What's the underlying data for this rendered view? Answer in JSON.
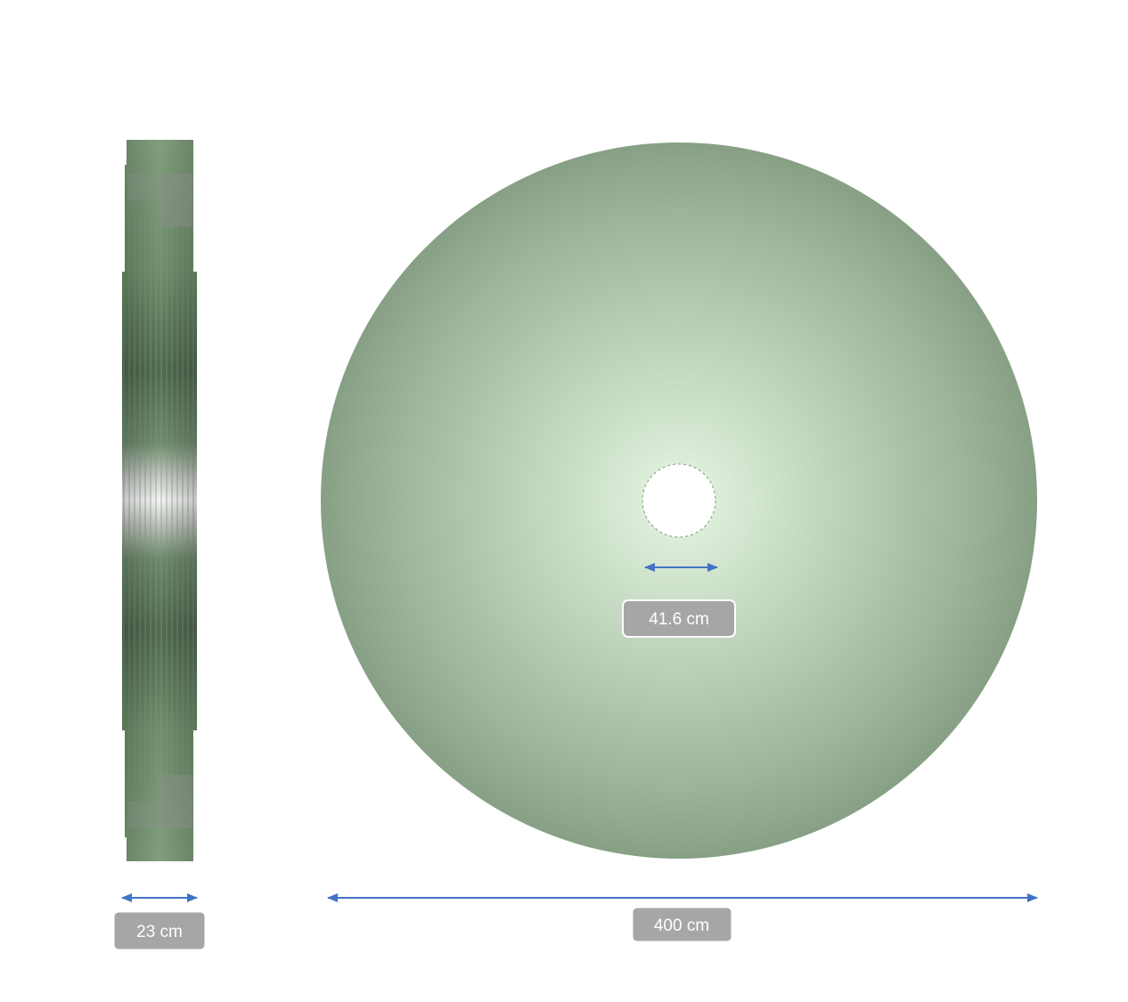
{
  "dimensions": {
    "thickness": {
      "label": "23 cm"
    },
    "outer_diameter": {
      "label": "400 cm"
    },
    "inner_diameter": {
      "label": "41.6 cm"
    }
  },
  "colors": {
    "disc_edge": "#88a085",
    "disc_mid": "#b3c9b0",
    "disc_center": "#e6f6e3",
    "side_green": "#7e9c7a",
    "side_dark": "#4f6a4e",
    "side_grey": "#8e948e",
    "arrow": "#4472c4",
    "label_bg": "#a6a6a6",
    "label_border": "#ffffff"
  },
  "icons": {
    "arrow": "double-headed-arrow"
  }
}
